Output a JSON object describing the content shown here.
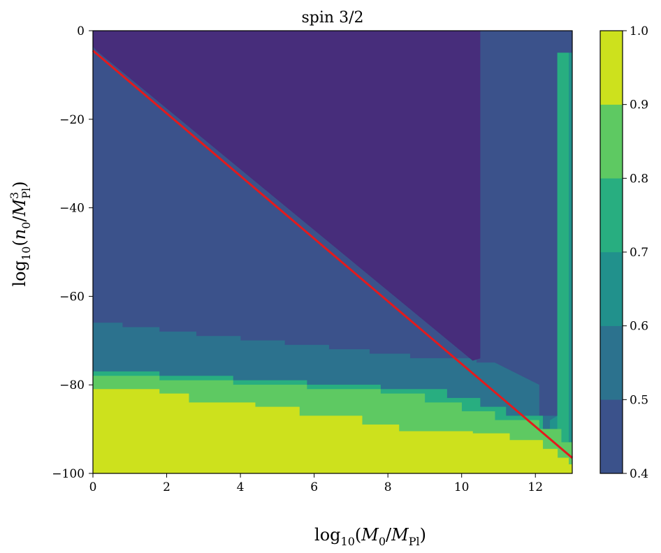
{
  "chart_data": {
    "type": "heatmap",
    "title": "spin 3/2",
    "xlabel": {
      "base": "log",
      "sub": "10",
      "open": "(",
      "num": "M",
      "num_sub": "0",
      "slash": "/",
      "den": "M",
      "den_sub": "Pl",
      "close": ")"
    },
    "ylabel": {
      "base": "log",
      "sub": "10",
      "open": "(",
      "num": "n",
      "num_sub": "0",
      "slash": "/",
      "den": "M",
      "den_sup": "3",
      "den_sub": "Pl",
      "close": ")"
    },
    "xlim": [
      0,
      13.0
    ],
    "ylim": [
      -100,
      0
    ],
    "x_ticks": [
      0,
      2,
      4,
      6,
      8,
      10,
      12
    ],
    "x_tick_labels": [
      "0",
      "2",
      "4",
      "6",
      "8",
      "10",
      "12"
    ],
    "y_ticks": [
      0,
      -20,
      -40,
      -60,
      -80,
      -100
    ],
    "y_tick_labels": [
      "0",
      "−20",
      "−40",
      "−60",
      "−80",
      "−100"
    ],
    "grid": false,
    "colorbar": {
      "range": [
        0.4,
        1.0
      ],
      "boundaries": [
        0.4,
        0.5,
        0.6,
        0.7,
        0.8,
        0.9,
        1.0
      ],
      "tick_labels": [
        "0.4",
        "0.5",
        "0.6",
        "0.7",
        "0.8",
        "0.9",
        "1.0"
      ],
      "colors": [
        "#472d7b",
        "#3b528b",
        "#2c728e",
        "#21918c",
        "#28ae80",
        "#5ec962",
        "#cde11d"
      ]
    },
    "regions": [
      {
        "level": "0.5-0.6",
        "color": "#3b528b",
        "points": [
          [
            0,
            -100
          ],
          [
            13,
            -100
          ],
          [
            13,
            0
          ],
          [
            0,
            0
          ]
        ]
      },
      {
        "level": "0.6-0.7",
        "color": "#2c728e",
        "points": [
          [
            0,
            -100
          ],
          [
            0,
            -66
          ],
          [
            0.8,
            -66
          ],
          [
            0.8,
            -67
          ],
          [
            1.8,
            -67
          ],
          [
            1.8,
            -68
          ],
          [
            2.8,
            -68
          ],
          [
            2.8,
            -69
          ],
          [
            4,
            -69
          ],
          [
            4,
            -70
          ],
          [
            5.2,
            -70
          ],
          [
            5.2,
            -71
          ],
          [
            6.4,
            -71
          ],
          [
            6.4,
            -72
          ],
          [
            7.5,
            -72
          ],
          [
            7.5,
            -73
          ],
          [
            8.6,
            -73
          ],
          [
            8.6,
            -74
          ],
          [
            10.4,
            -74
          ],
          [
            10.4,
            -75
          ],
          [
            10.9,
            -75
          ],
          [
            12.1,
            -80
          ],
          [
            12.1,
            -87
          ],
          [
            13,
            -87
          ],
          [
            13,
            -100
          ]
        ]
      },
      {
        "level": "0.7-0.8",
        "color": "#21918c",
        "points": [
          [
            12.4,
            -100
          ],
          [
            12.4,
            -88
          ],
          [
            12.6,
            -87
          ],
          [
            12.6,
            -5
          ],
          [
            13,
            -5
          ],
          [
            13,
            -100
          ]
        ]
      },
      {
        "level": "0.8-0.9",
        "color": "#28ae80",
        "points": [
          [
            12.6,
            -100
          ],
          [
            12.6,
            -5
          ],
          [
            12.9,
            -5
          ],
          [
            12.9,
            -100
          ]
        ]
      },
      {
        "level": "0.8-0.9b",
        "color": "#28ae80",
        "points": [
          [
            0,
            -100
          ],
          [
            0,
            -77
          ],
          [
            1.8,
            -77
          ],
          [
            1.8,
            -78
          ],
          [
            3.8,
            -78
          ],
          [
            3.8,
            -79
          ],
          [
            5.8,
            -79
          ],
          [
            5.8,
            -80
          ],
          [
            7.8,
            -80
          ],
          [
            7.8,
            -81
          ],
          [
            9.6,
            -81
          ],
          [
            9.6,
            -83
          ],
          [
            10.5,
            -83
          ],
          [
            10.5,
            -85
          ],
          [
            11.2,
            -85
          ],
          [
            11.2,
            -87
          ],
          [
            12.2,
            -87
          ],
          [
            12.2,
            -100
          ]
        ]
      },
      {
        "level": "0.9-1.0",
        "color": "#5ec962",
        "points": [
          [
            0,
            -100
          ],
          [
            0,
            -78
          ],
          [
            1.8,
            -78
          ],
          [
            1.8,
            -79
          ],
          [
            3.8,
            -79
          ],
          [
            3.8,
            -80
          ],
          [
            5.8,
            -80
          ],
          [
            5.8,
            -81
          ],
          [
            7.8,
            -81
          ],
          [
            7.8,
            -82
          ],
          [
            9,
            -82
          ],
          [
            9,
            -84
          ],
          [
            10,
            -84
          ],
          [
            10,
            -86
          ],
          [
            10.9,
            -86
          ],
          [
            10.9,
            -88
          ],
          [
            12.1,
            -88
          ],
          [
            12.1,
            -90
          ],
          [
            12.7,
            -90
          ],
          [
            12.7,
            -93
          ],
          [
            13,
            -93
          ],
          [
            13,
            -100
          ]
        ]
      },
      {
        "level": "1.0",
        "color": "#cde11d",
        "points": [
          [
            0,
            -100
          ],
          [
            0,
            -81
          ],
          [
            1.8,
            -81
          ],
          [
            1.8,
            -82
          ],
          [
            2.6,
            -82
          ],
          [
            2.6,
            -84
          ],
          [
            4.4,
            -84
          ],
          [
            4.4,
            -85
          ],
          [
            5.6,
            -85
          ],
          [
            5.6,
            -87
          ],
          [
            7.3,
            -87
          ],
          [
            7.3,
            -89
          ],
          [
            8.3,
            -89
          ],
          [
            8.3,
            -90.5
          ],
          [
            10.3,
            -90.5
          ],
          [
            10.3,
            -91
          ],
          [
            11.3,
            -91
          ],
          [
            11.3,
            -92.5
          ],
          [
            12.2,
            -92.5
          ],
          [
            12.2,
            -94.5
          ],
          [
            12.6,
            -94.5
          ],
          [
            12.6,
            -96.5
          ],
          [
            12.9,
            -96.5
          ],
          [
            12.9,
            -98
          ],
          [
            13,
            -98
          ],
          [
            13,
            -100
          ]
        ]
      },
      {
        "level": "0.4-0.5",
        "color": "#472d7b",
        "points": [
          [
            0,
            -3.5
          ],
          [
            0,
            0
          ],
          [
            10.5,
            0
          ],
          [
            10.5,
            -74
          ],
          [
            10.3,
            -74.5
          ],
          [
            0.1,
            -4.5
          ]
        ]
      }
    ],
    "series": [
      {
        "color": "#e41a1c",
        "x": [
          0,
          13
        ],
        "y": [
          -4.5,
          -96.5
        ]
      }
    ]
  }
}
